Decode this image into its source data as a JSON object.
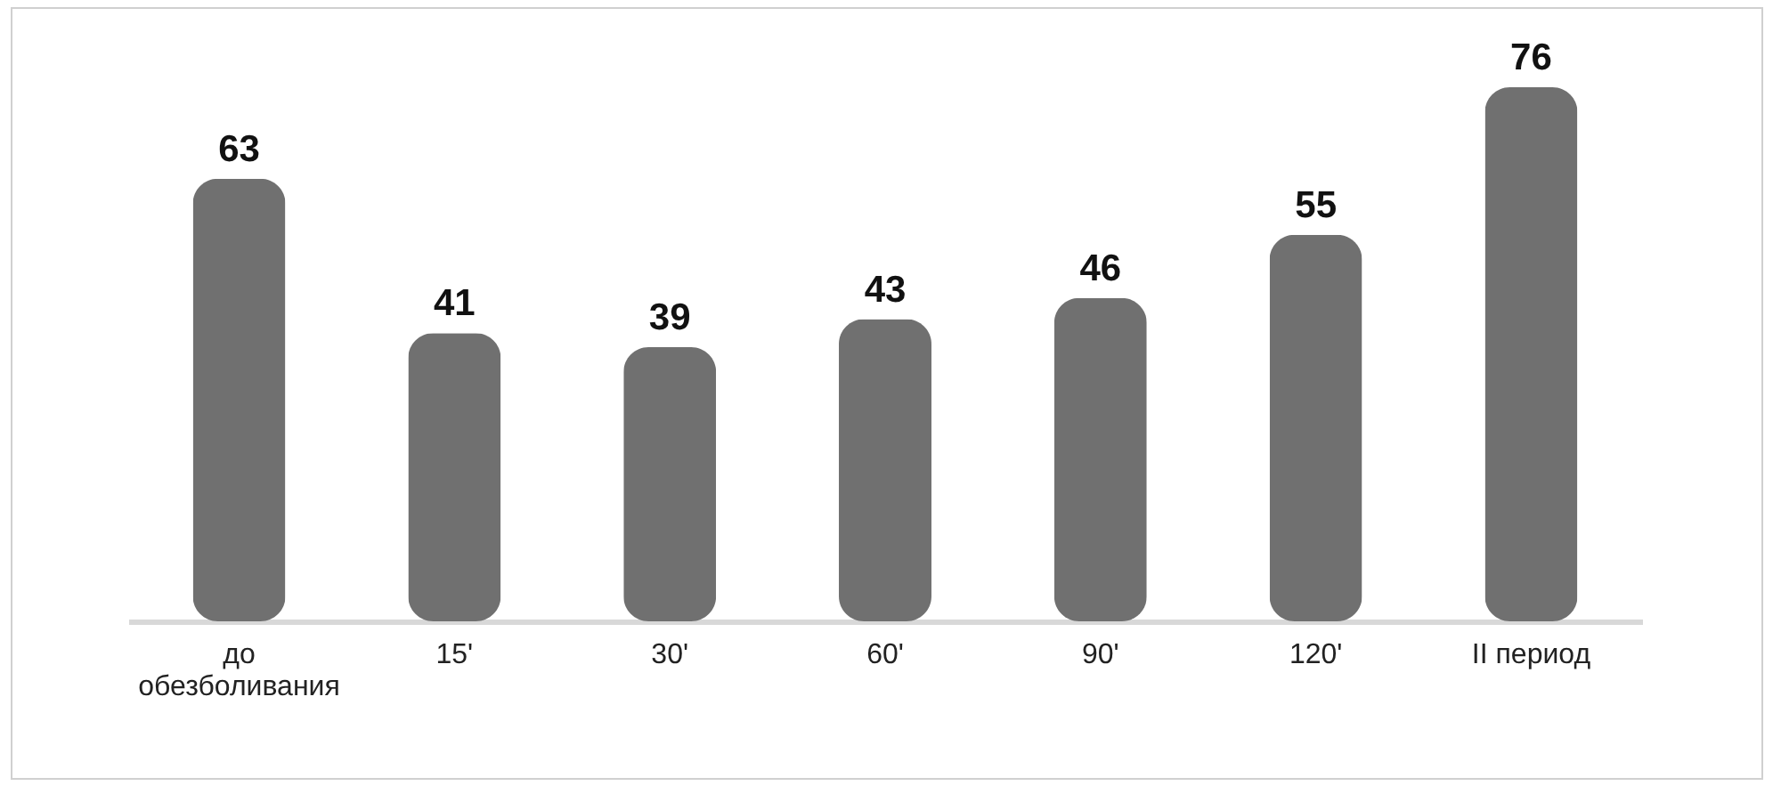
{
  "chart_data": {
    "type": "bar",
    "categories": [
      "до обезболивания",
      "15'",
      "30'",
      "60'",
      "90'",
      "120'",
      "II период"
    ],
    "values": [
      63,
      41,
      39,
      43,
      46,
      55,
      76
    ],
    "color": "#707070",
    "data_labels": true
  }
}
